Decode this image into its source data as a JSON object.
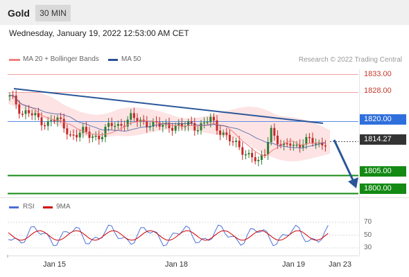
{
  "header": {
    "asset": "Gold",
    "timeframe": "30 MIN"
  },
  "datetime": "Wednesday, January 19, 2022 12:53:00 AM CET",
  "legend": {
    "ma20_label": "MA 20 + Bollinger Bands",
    "ma50_label": "MA 50",
    "ma20_color": "#f08080",
    "ma50_color": "#2a4f9a"
  },
  "credit": "Research © 2022 Trading Central",
  "price_levels": [
    {
      "label": "1833.00",
      "value": 1833.0,
      "style": "resistance-plain"
    },
    {
      "label": "1828.00",
      "value": 1828.0,
      "style": "resistance-plain"
    },
    {
      "label": "1820.00",
      "value": 1820.0,
      "style": "pivot-blue"
    },
    {
      "label": "1814.27",
      "value": 1814.27,
      "style": "last-price"
    },
    {
      "label": "1805.00",
      "value": 1805.0,
      "style": "support-green"
    },
    {
      "label": "1800.00",
      "value": 1800.0,
      "style": "support-green"
    }
  ],
  "rsi_legend": {
    "rsi_label": "RSI",
    "ma9_label": "9MA",
    "rsi_color": "#4a6fd8",
    "ma9_color": "#d00000"
  },
  "rsi_levels": [
    "70",
    "50",
    "30"
  ],
  "x_dates": [
    "Jan 15",
    "Jan 18",
    "Jan 19",
    "Jan 23"
  ]
}
